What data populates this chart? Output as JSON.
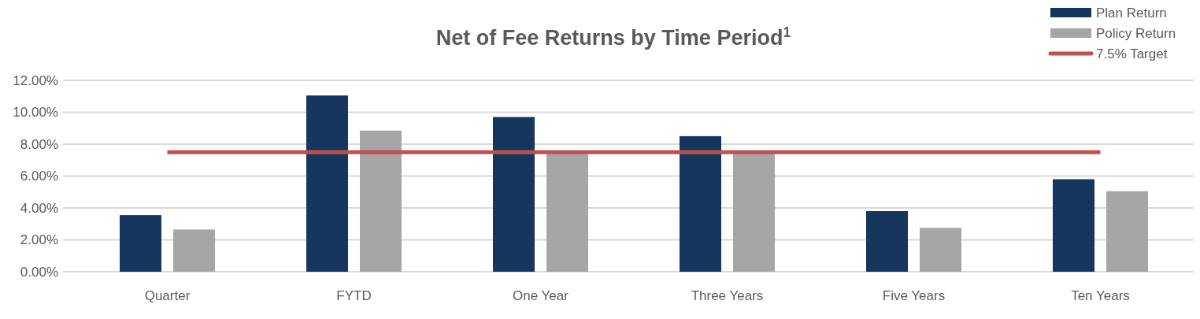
{
  "chart_data": {
    "type": "bar",
    "title": "Net of Fee Returns by Time Period$^{1}$",
    "categories": [
      "Quarter",
      "FYTD",
      "One Year",
      "Three Years",
      "Five Years",
      "Ten Years"
    ],
    "series": [
      {
        "name": "Plan Return",
        "color": "#17365d",
        "values": [
          3.55,
          11.05,
          9.7,
          8.5,
          3.8,
          5.8
        ]
      },
      {
        "name": "Policy Return",
        "color": "#a6a6a6",
        "values": [
          2.65,
          8.85,
          7.4,
          7.4,
          2.75,
          5.05
        ]
      }
    ],
    "ylim": [
      0,
      12
    ],
    "yticks": [
      {
        "value": 0,
        "label": "0.00%"
      },
      {
        "value": 2,
        "label": "2.00%"
      },
      {
        "value": 4,
        "label": "4.00%"
      },
      {
        "value": 6,
        "label": "6.00%"
      },
      {
        "value": 8,
        "label": "8.00%"
      },
      {
        "value": 10,
        "label": "10.00%"
      },
      {
        "value": 12,
        "label": "12.00%"
      }
    ],
    "ref_lines": [
      {
        "axis": "y",
        "value": 7.5,
        "label": "7.5% Target",
        "color": "#c0504d"
      }
    ],
    "grid": "y",
    "legend": "top right"
  }
}
